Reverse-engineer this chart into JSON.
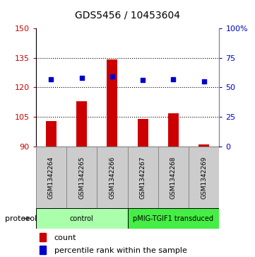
{
  "title": "GDS5456 / 10453604",
  "samples": [
    "GSM1342264",
    "GSM1342265",
    "GSM1342266",
    "GSM1342267",
    "GSM1342268",
    "GSM1342269"
  ],
  "counts": [
    103,
    113,
    134,
    104,
    107,
    91
  ],
  "percentile_ranks": [
    57,
    58,
    59,
    56,
    57,
    55
  ],
  "ylim_left": [
    90,
    150
  ],
  "yticks_left": [
    90,
    105,
    120,
    135,
    150
  ],
  "ylim_right": [
    0,
    100
  ],
  "yticks_right": [
    0,
    25,
    50,
    75,
    100
  ],
  "ytick_labels_right": [
    "0",
    "25",
    "50",
    "75",
    "100%"
  ],
  "bar_color": "#cc0000",
  "dot_color": "#0000cc",
  "bar_bottom": 90,
  "grid_lines": [
    105,
    120,
    135
  ],
  "groups": [
    {
      "label": "control",
      "span": [
        0,
        3
      ],
      "color": "#aaffaa"
    },
    {
      "label": "pMIG-TGIF1 transduced",
      "span": [
        3,
        6
      ],
      "color": "#44ee44"
    }
  ],
  "sample_box_color": "#cccccc",
  "sample_box_edgecolor": "#888888",
  "protocol_label": "protocol",
  "legend_count_label": "count",
  "legend_percentile_label": "percentile rank within the sample",
  "plot_bg": "#ffffff",
  "title_fontsize": 10,
  "tick_fontsize": 8,
  "label_fontsize": 8,
  "bar_width": 0.35
}
